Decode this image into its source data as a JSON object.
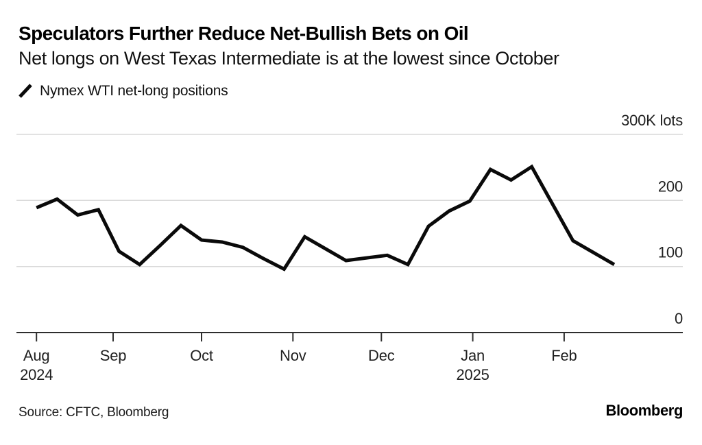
{
  "header": {
    "title": "Speculators Further Reduce Net-Bullish Bets on Oil",
    "subtitle": "Net longs on West Texas Intermediate is at the lowest since October"
  },
  "legend": {
    "swatch_icon": "diagonal-line-mark",
    "label": "Nymex WTI net-long positions"
  },
  "chart_data": {
    "type": "line",
    "title": "Nymex WTI net-long positions",
    "unit_label": "300K lots",
    "ylabel": "thousands of lots",
    "ylim": [
      0,
      300
    ],
    "y_ticks": [
      0,
      100,
      200,
      300
    ],
    "y_tick_labels": [
      "0",
      "100",
      "200",
      "300K lots"
    ],
    "grid": "horizontal",
    "legend_position": "top-left",
    "x_ticks": [
      {
        "date": "2024-08-06",
        "label": "Aug",
        "sublabel": "2024"
      },
      {
        "date": "2024-09-01",
        "label": "Sep",
        "sublabel": ""
      },
      {
        "date": "2024-10-01",
        "label": "Oct",
        "sublabel": ""
      },
      {
        "date": "2024-11-01",
        "label": "Nov",
        "sublabel": ""
      },
      {
        "date": "2024-12-01",
        "label": "Dec",
        "sublabel": ""
      },
      {
        "date": "2025-01-01",
        "label": "Jan",
        "sublabel": "2025"
      },
      {
        "date": "2025-02-01",
        "label": "Feb",
        "sublabel": ""
      }
    ],
    "series": [
      {
        "name": "Nymex WTI net-long positions",
        "color": "#0a0a0a",
        "points": [
          {
            "date": "2024-08-06",
            "value": 189
          },
          {
            "date": "2024-08-13",
            "value": 202
          },
          {
            "date": "2024-08-20",
            "value": 178
          },
          {
            "date": "2024-08-27",
            "value": 186
          },
          {
            "date": "2024-09-03",
            "value": 123
          },
          {
            "date": "2024-09-10",
            "value": 103
          },
          {
            "date": "2024-09-17",
            "value": 132
          },
          {
            "date": "2024-09-24",
            "value": 162
          },
          {
            "date": "2024-10-01",
            "value": 140
          },
          {
            "date": "2024-10-08",
            "value": 137
          },
          {
            "date": "2024-10-15",
            "value": 129
          },
          {
            "date": "2024-10-22",
            "value": 112
          },
          {
            "date": "2024-10-29",
            "value": 96
          },
          {
            "date": "2024-11-05",
            "value": 145
          },
          {
            "date": "2024-11-12",
            "value": 127
          },
          {
            "date": "2024-11-19",
            "value": 109
          },
          {
            "date": "2024-11-26",
            "value": 113
          },
          {
            "date": "2024-12-03",
            "value": 117
          },
          {
            "date": "2024-12-10",
            "value": 103
          },
          {
            "date": "2024-12-17",
            "value": 161
          },
          {
            "date": "2024-12-24",
            "value": 184
          },
          {
            "date": "2024-12-31",
            "value": 199
          },
          {
            "date": "2025-01-07",
            "value": 247
          },
          {
            "date": "2025-01-14",
            "value": 231
          },
          {
            "date": "2025-01-21",
            "value": 251
          },
          {
            "date": "2025-01-28",
            "value": 195
          },
          {
            "date": "2025-02-04",
            "value": 139
          },
          {
            "date": "2025-02-11",
            "value": 121
          },
          {
            "date": "2025-02-18",
            "value": 103
          }
        ]
      }
    ]
  },
  "footer": {
    "source": "Source: CFTC, Bloomberg",
    "brand": "Bloomberg"
  },
  "colors": {
    "background": "#ffffff",
    "grid": "#d9d9d9",
    "axis": "#2e2e2e",
    "line": "#0a0a0a",
    "text": "#000000"
  }
}
